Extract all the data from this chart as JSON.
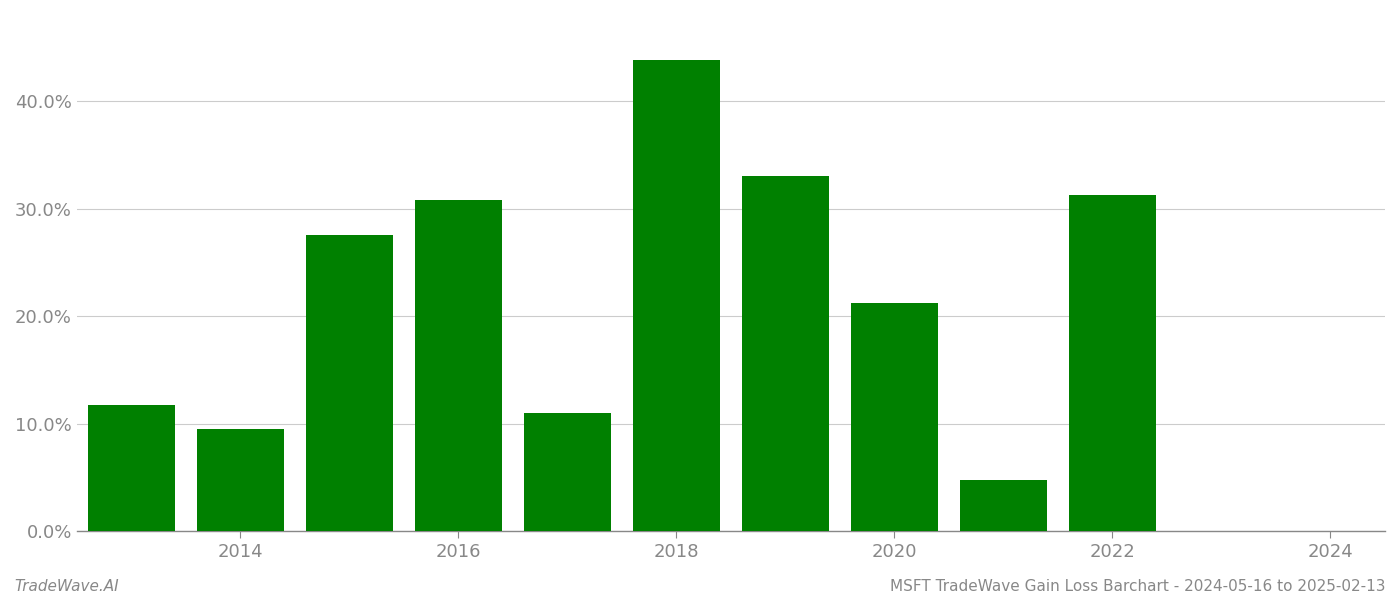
{
  "years": [
    2013,
    2014,
    2015,
    2016,
    2017,
    2018,
    2019,
    2020,
    2021,
    2022,
    2023
  ],
  "values": [
    0.117,
    0.095,
    0.275,
    0.308,
    0.11,
    0.438,
    0.33,
    0.212,
    0.048,
    0.313,
    0.0
  ],
  "bar_color": "#008000",
  "bar_width": 0.8,
  "ylim": [
    0,
    0.48
  ],
  "yticks": [
    0.0,
    0.1,
    0.2,
    0.3,
    0.4
  ],
  "ytick_labels": [
    "0.0%",
    "10.0%",
    "20.0%",
    "30.0%",
    "40.0%"
  ],
  "xtick_positions": [
    2014,
    2016,
    2018,
    2020,
    2022,
    2024
  ],
  "xtick_labels": [
    "2014",
    "2016",
    "2018",
    "2020",
    "2022",
    "2024"
  ],
  "xlim_left": 2012.5,
  "xlim_right": 2024.5,
  "bottom_left_text": "TradeWave.AI",
  "bottom_right_text": "MSFT TradeWave Gain Loss Barchart - 2024-05-16 to 2025-02-13",
  "grid_color": "#cccccc",
  "axis_color": "#888888",
  "tick_color": "#888888",
  "bg_color": "#ffffff",
  "figsize": [
    14.0,
    6.0
  ],
  "dpi": 100
}
